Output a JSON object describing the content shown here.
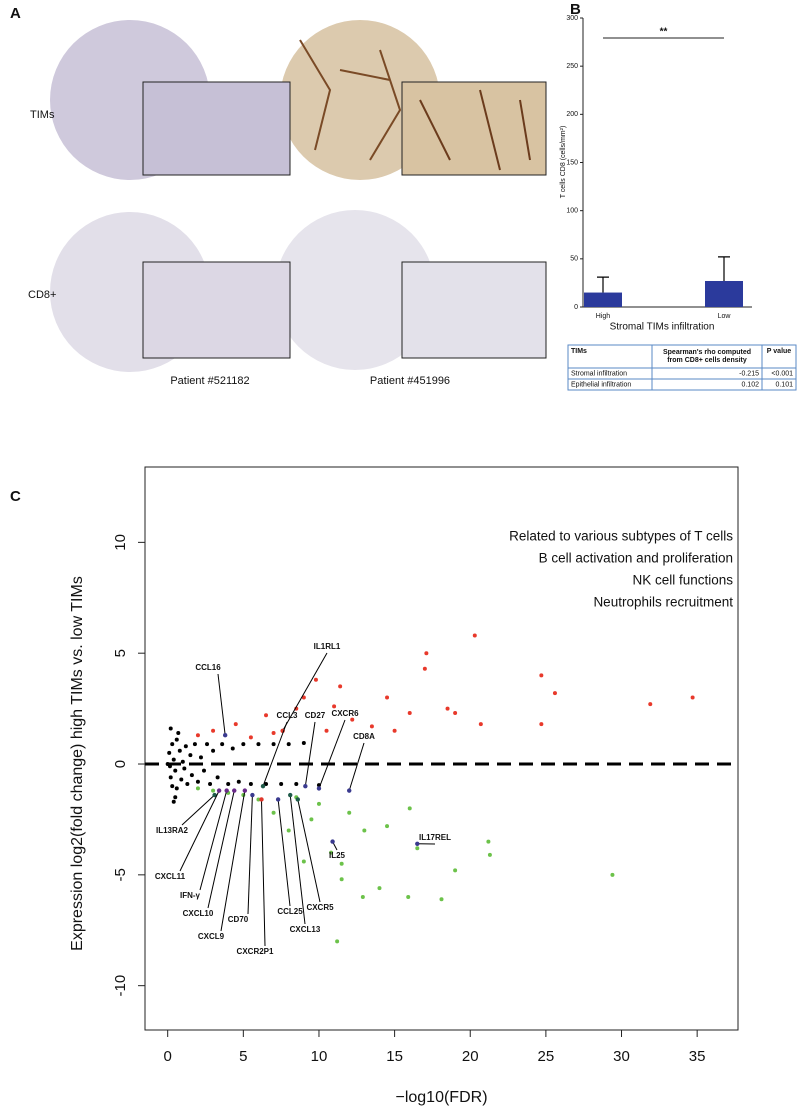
{
  "panel_a": {
    "letter": "A",
    "rows": [
      "TIMs",
      "CD8+"
    ],
    "patients": [
      "Patient #521182",
      "Patient #451996"
    ]
  },
  "panel_b_letter": "B",
  "panel_c_letter": "C",
  "table": {
    "header": [
      "TIMs",
      "Spearman's rho computed from CD8+ cells density",
      "P value"
    ],
    "rows": [
      [
        "Stromal infiltration",
        "-0.215",
        "<0.001"
      ],
      [
        "Epithelial infiltration",
        "0.102",
        "0.101"
      ]
    ]
  },
  "chart_data": [
    {
      "type": "bar",
      "ylabel": "T cells CD8 (cells/mm²)",
      "xlabel": "Stromal TIMs infiltration",
      "categories": [
        "High",
        "Low"
      ],
      "values": [
        15,
        27
      ],
      "errors": [
        16,
        25
      ],
      "color": "#2b3a9c",
      "ylim": [
        0,
        300
      ],
      "yticks": [
        0,
        50,
        100,
        150,
        200,
        250,
        300
      ],
      "significance": "**"
    },
    {
      "type": "scatter",
      "xlabel": "−log10(FDR)",
      "ylabel": "Expression log2(fold change) high TIMs vs. low TIMs",
      "xlim": [
        -1.5,
        37.7
      ],
      "ylim": [
        -12,
        13.4
      ],
      "xticks": [
        0,
        5,
        10,
        15,
        20,
        25,
        30,
        35
      ],
      "yticks": [
        -10,
        -5,
        0,
        5,
        10
      ],
      "annotations": [
        {
          "text": "Related to various subtypes of T cells",
          "color": "#3a3a8f"
        },
        {
          "text": "B cell activation and proliferation",
          "color": "#1f5b4a"
        },
        {
          "text": "NK cell functions",
          "color": "#6a2b8a"
        },
        {
          "text": "Neutrophils recruitment",
          "color": "#e0362a"
        }
      ],
      "series": [
        {
          "color": "#000000",
          "x": [
            0.1,
            0.2,
            0.3,
            0.3,
            0.4,
            0.5,
            0.6,
            0.6,
            0.8,
            0.9,
            1.0,
            1.1,
            1.2,
            1.3,
            1.5,
            1.6,
            1.8,
            2.0,
            2.2,
            2.4,
            2.6,
            2.8,
            3.0,
            3.3,
            3.6,
            4.0,
            4.3,
            4.7,
            5.0,
            5.5,
            6.0,
            6.5,
            7.0,
            7.5,
            8.0,
            8.5,
            9.0,
            10.0,
            0.2,
            0.4,
            0.7,
            0.5,
            0.0,
            0.15
          ],
          "values": [
            0.5,
            -0.6,
            0.9,
            -1.0,
            0.2,
            -0.3,
            1.1,
            -1.1,
            0.6,
            -0.7,
            0.1,
            -0.2,
            0.8,
            -0.9,
            0.4,
            -0.5,
            0.9,
            -0.8,
            0.3,
            -0.3,
            0.9,
            -0.9,
            0.6,
            -0.6,
            0.9,
            -0.9,
            0.7,
            -0.8,
            0.9,
            -0.9,
            0.9,
            -0.9,
            0.9,
            -0.9,
            0.9,
            -0.9,
            0.95,
            -0.95,
            1.6,
            -1.7,
            1.4,
            -1.5,
            0.0,
            -0.1
          ]
        },
        {
          "color": "#e8392b",
          "x": [
            20.3,
            17.1,
            17.0,
            24.7,
            25.6,
            34.7,
            31.9,
            24.7,
            20.7,
            14.5,
            11.4,
            9.8,
            16.0,
            18.5,
            12.2,
            8.5,
            6.5,
            4.5,
            3.0,
            2.0,
            10.5,
            13.5,
            7.0,
            5.5,
            15.0,
            19.0,
            9.0,
            11.0
          ],
          "values": [
            5.8,
            5.0,
            4.3,
            4.0,
            3.2,
            3.0,
            2.7,
            1.8,
            1.8,
            3.0,
            3.5,
            3.8,
            2.3,
            2.5,
            2.0,
            2.5,
            2.2,
            1.8,
            1.5,
            1.3,
            1.5,
            1.7,
            1.4,
            1.2,
            1.5,
            2.3,
            3.0,
            2.6
          ]
        },
        {
          "color": "#6cc24a",
          "x": [
            29.4,
            21.2,
            21.3,
            16.5,
            18.1,
            19.0,
            15.9,
            11.2,
            12.9,
            14.0,
            10.8,
            11.5,
            13.0,
            9.5,
            8.0,
            7.0,
            6.0,
            5.0,
            4.0,
            3.0,
            2.0,
            10.0,
            12.0,
            14.5,
            8.5,
            16.0,
            11.5,
            9.0
          ],
          "values": [
            -5.0,
            -3.5,
            -4.1,
            -3.8,
            -6.1,
            -4.8,
            -6.0,
            -8.0,
            -6.0,
            -5.6,
            -4.0,
            -4.5,
            -3.0,
            -2.5,
            -3.0,
            -2.2,
            -1.6,
            -1.4,
            -1.3,
            -1.2,
            -1.1,
            -1.8,
            -2.2,
            -2.8,
            -1.5,
            -2.0,
            -5.2,
            -4.4
          ]
        }
      ],
      "genes": [
        {
          "text": "CCL16",
          "x": 3.8,
          "y": 1.3,
          "color": "#3a3a8f"
        },
        {
          "text": "IL1RL1",
          "x": 7.6,
          "y": 1.5,
          "color": "#e0362a"
        },
        {
          "text": "CCL3",
          "x": 6.3,
          "y": -1.0,
          "color": "#1f5b4a"
        },
        {
          "text": "CD27",
          "x": 9.1,
          "y": -1.0,
          "color": "#3a3a8f"
        },
        {
          "text": "CXCR6",
          "x": 10.0,
          "y": -1.1,
          "color": "#3a3a8f"
        },
        {
          "text": "CD8A",
          "x": 12.0,
          "y": -1.2,
          "color": "#3a3a8f"
        },
        {
          "text": "IL13RA2",
          "x": 3.1,
          "y": -1.4,
          "color": "#1f5b4a"
        },
        {
          "text": "CXCL11",
          "x": 3.4,
          "y": -1.2,
          "color": "#6a2b8a"
        },
        {
          "text": "IFN-γ",
          "x": 3.9,
          "y": -1.2,
          "color": "#6a2b8a"
        },
        {
          "text": "CXCL10",
          "x": 4.4,
          "y": -1.2,
          "color": "#6a2b8a"
        },
        {
          "text": "CD70",
          "x": 5.6,
          "y": -1.4,
          "color": "#3a3a8f"
        },
        {
          "text": "CXCL9",
          "x": 5.1,
          "y": -1.2,
          "color": "#6a2b8a"
        },
        {
          "text": "CXCR2P1",
          "x": 6.2,
          "y": -1.6,
          "color": "#e0362a"
        },
        {
          "text": "CCL25",
          "x": 7.3,
          "y": -1.6,
          "color": "#3a3a8f"
        },
        {
          "text": "CXCL13",
          "x": 8.1,
          "y": -1.4,
          "color": "#1f5b4a"
        },
        {
          "text": "CXCR5",
          "x": 8.6,
          "y": -1.6,
          "color": "#1f5b4a"
        },
        {
          "text": "IL25",
          "x": 10.9,
          "y": -3.5,
          "color": "#3a3a8f"
        },
        {
          "text": "IL17REL",
          "x": 16.5,
          "y": -3.6,
          "color": "#3a3a8f"
        }
      ]
    }
  ]
}
